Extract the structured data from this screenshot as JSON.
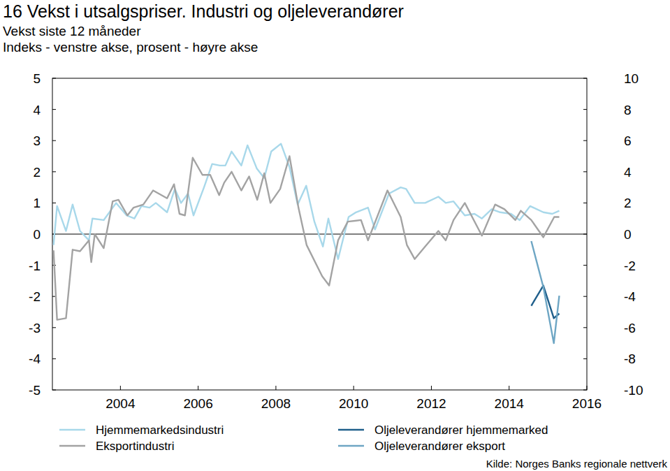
{
  "chart_data": {
    "type": "line",
    "title": "16 Vekst i utsalgspriser. Industri og oljeleverandører",
    "subtitle": [
      "Vekst siste 12 måneder",
      "Indeks - venstre akse, prosent - høyre akse"
    ],
    "source": "Kilde: Norges Banks regionale nettverk",
    "xlim": [
      2002.75,
      2016.5
    ],
    "xticks": [
      {
        "value": 2004.5,
        "label": "2004"
      },
      {
        "value": 2006.5,
        "label": "2006"
      },
      {
        "value": 2008.5,
        "label": "2008"
      },
      {
        "value": 2010.5,
        "label": "2010"
      },
      {
        "value": 2012.5,
        "label": "2012"
      },
      {
        "value": 2014.5,
        "label": "2014"
      },
      {
        "value": 2016.5,
        "label": "2016"
      }
    ],
    "ylim": [
      -5,
      5
    ],
    "yticks": [
      -5,
      -4,
      -3,
      -2,
      -1,
      0,
      1,
      2,
      3,
      4,
      5
    ],
    "y2lim": [
      -10,
      10
    ],
    "y2ticks": [
      -10,
      -8,
      -6,
      -4,
      -2,
      0,
      2,
      4,
      6,
      8,
      10
    ],
    "grid": false,
    "legend": "bottom",
    "series": [
      {
        "name": "Hjemmemarkedsindustri",
        "color": "#a8d8ea",
        "x": [
          2002.78,
          2002.87,
          2003.1,
          2003.27,
          2003.46,
          2003.69,
          2003.78,
          2004.07,
          2004.39,
          2004.66,
          2004.86,
          2005.04,
          2005.25,
          2005.41,
          2005.7,
          2005.9,
          2006.06,
          2006.24,
          2006.38,
          2006.65,
          2006.86,
          2007.06,
          2007.2,
          2007.36,
          2007.61,
          2007.77,
          2008.01,
          2008.2,
          2008.38,
          2008.63,
          2008.85,
          2009.06,
          2009.28,
          2009.49,
          2009.71,
          2009.85,
          2010.1,
          2010.37,
          2010.56,
          2010.87,
          2011.05,
          2011.41,
          2011.71,
          2011.85,
          2012.07,
          2012.34,
          2012.68,
          2012.87,
          2013.07,
          2013.36,
          2013.61,
          2013.8,
          2014.05,
          2014.27,
          2014.55,
          2014.77,
          2015.04,
          2015.38,
          2015.61,
          2015.79
        ],
        "values": [
          -0.35,
          0.9,
          0.1,
          0.95,
          0.1,
          -0.2,
          0.5,
          0.45,
          1.0,
          0.6,
          0.5,
          0.9,
          0.85,
          1.0,
          0.7,
          1.45,
          1.0,
          1.3,
          0.6,
          1.5,
          2.25,
          2.2,
          2.2,
          2.65,
          2.2,
          2.85,
          2.1,
          1.8,
          2.65,
          2.9,
          2.15,
          0.95,
          1.55,
          0.4,
          -0.4,
          0.5,
          -0.8,
          0.55,
          0.7,
          0.85,
          0.15,
          1.3,
          1.5,
          1.45,
          1.0,
          1.0,
          1.2,
          1.0,
          1.05,
          0.6,
          0.65,
          0.5,
          0.8,
          0.7,
          0.65,
          0.45,
          0.9,
          0.7,
          0.65,
          0.75
        ]
      },
      {
        "name": "Eksportindustri",
        "color": "#a3a3a3",
        "x": [
          2002.78,
          2002.87,
          2003.1,
          2003.27,
          2003.46,
          2003.69,
          2003.75,
          2003.84,
          2004.07,
          2004.3,
          2004.45,
          2004.68,
          2004.84,
          2005.09,
          2005.34,
          2005.7,
          2005.88,
          2006.02,
          2006.16,
          2006.36,
          2006.61,
          2006.81,
          2007.04,
          2007.17,
          2007.36,
          2007.61,
          2007.81,
          2008.02,
          2008.2,
          2008.36,
          2008.61,
          2008.85,
          2009.08,
          2009.29,
          2009.69,
          2009.87,
          2010.1,
          2010.35,
          2010.69,
          2010.87,
          2011.37,
          2011.71,
          2011.87,
          2012.07,
          2012.34,
          2012.68,
          2012.87,
          2013.07,
          2013.36,
          2013.8,
          2014.14,
          2014.38,
          2014.66,
          2014.8,
          2015.07,
          2015.38,
          2015.66,
          2015.79
        ],
        "values": [
          -0.52,
          -2.75,
          -2.7,
          -0.5,
          -0.55,
          -0.2,
          -0.9,
          0.0,
          -0.45,
          1.05,
          1.1,
          0.6,
          0.85,
          0.95,
          1.4,
          1.15,
          1.6,
          0.65,
          0.6,
          2.45,
          1.9,
          1.9,
          1.25,
          1.65,
          2.0,
          1.4,
          1.85,
          1.1,
          1.95,
          1.0,
          1.45,
          2.5,
          0.85,
          -0.35,
          -1.35,
          -1.65,
          -0.2,
          0.4,
          0.45,
          -0.2,
          1.4,
          0.55,
          -0.35,
          -0.8,
          -0.4,
          0.1,
          -0.2,
          0.45,
          1.0,
          -0.05,
          0.95,
          0.8,
          0.45,
          0.75,
          0.45,
          -0.1,
          0.55,
          0.55
        ]
      },
      {
        "name": "Oljeleverandører hjemmemarked",
        "color": "#1f5f8b",
        "axis": "y2",
        "x": [
          2015.07,
          2015.38,
          2015.65,
          2015.79
        ],
        "values": [
          -4.6,
          -3.3,
          -5.4,
          -5.1
        ]
      },
      {
        "name": "Oljeleverandører eksport",
        "color": "#6ea6c4",
        "axis": "y2",
        "x": [
          2015.07,
          2015.38,
          2015.65,
          2015.79
        ],
        "values": [
          -0.45,
          -3.4,
          -7.0,
          -3.95
        ]
      }
    ]
  }
}
